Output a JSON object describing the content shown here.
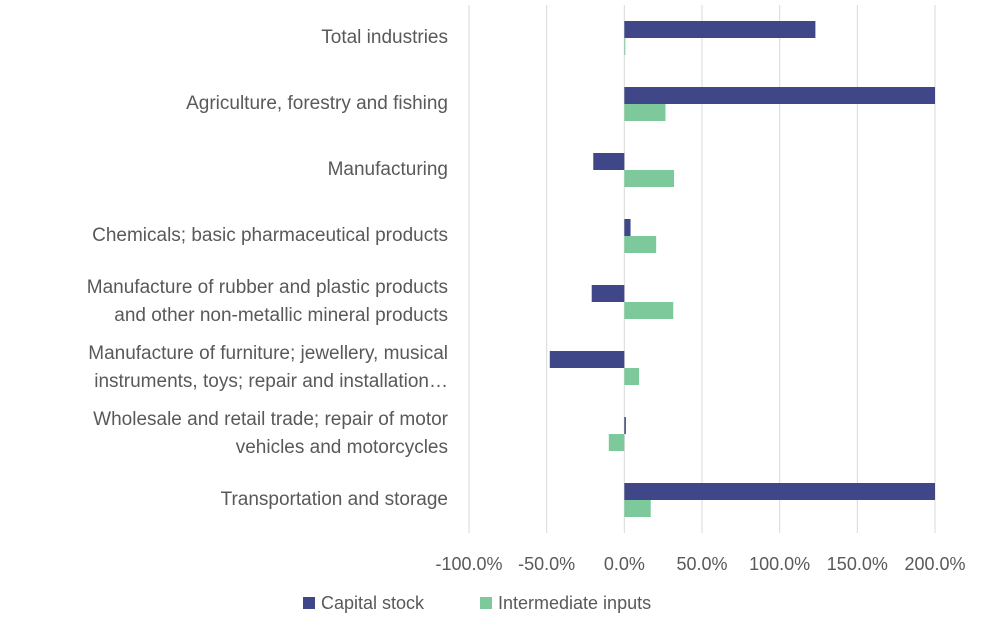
{
  "chart_data": {
    "type": "barh",
    "categories": [
      "Total industries",
      "Agriculture, forestry and fishing",
      "Manufacturing",
      "Chemicals; basic pharmaceutical products",
      "Manufacture of rubber and plastic products\nand other non-metallic mineral products",
      "Manufacture of furniture; jewellery, musical\ninstruments, toys; repair and installation…",
      "Wholesale and retail trade; repair of motor\nvehicles and motorcycles",
      "Transportation and storage"
    ],
    "series": [
      {
        "name": "Capital stock",
        "color": "#3f4788",
        "values": [
          123,
          200,
          -20,
          4,
          -21,
          -48,
          1,
          200
        ]
      },
      {
        "name": "Intermediate inputs",
        "color": "#7ec99c",
        "values": [
          0,
          26.5,
          32,
          20.5,
          31.5,
          9.5,
          -10,
          17
        ]
      }
    ],
    "xlim": [
      -100,
      200
    ],
    "xticks": [
      {
        "value": -100,
        "label": "-100.0%"
      },
      {
        "value": -50,
        "label": "-50.0%"
      },
      {
        "value": 0,
        "label": "0.0%"
      },
      {
        "value": 50,
        "label": "50.0%"
      },
      {
        "value": 100,
        "label": "100.0%"
      },
      {
        "value": 150,
        "label": "150.0%"
      },
      {
        "value": 200,
        "label": "200.0%"
      }
    ],
    "grid": true,
    "legend": "bottom"
  }
}
